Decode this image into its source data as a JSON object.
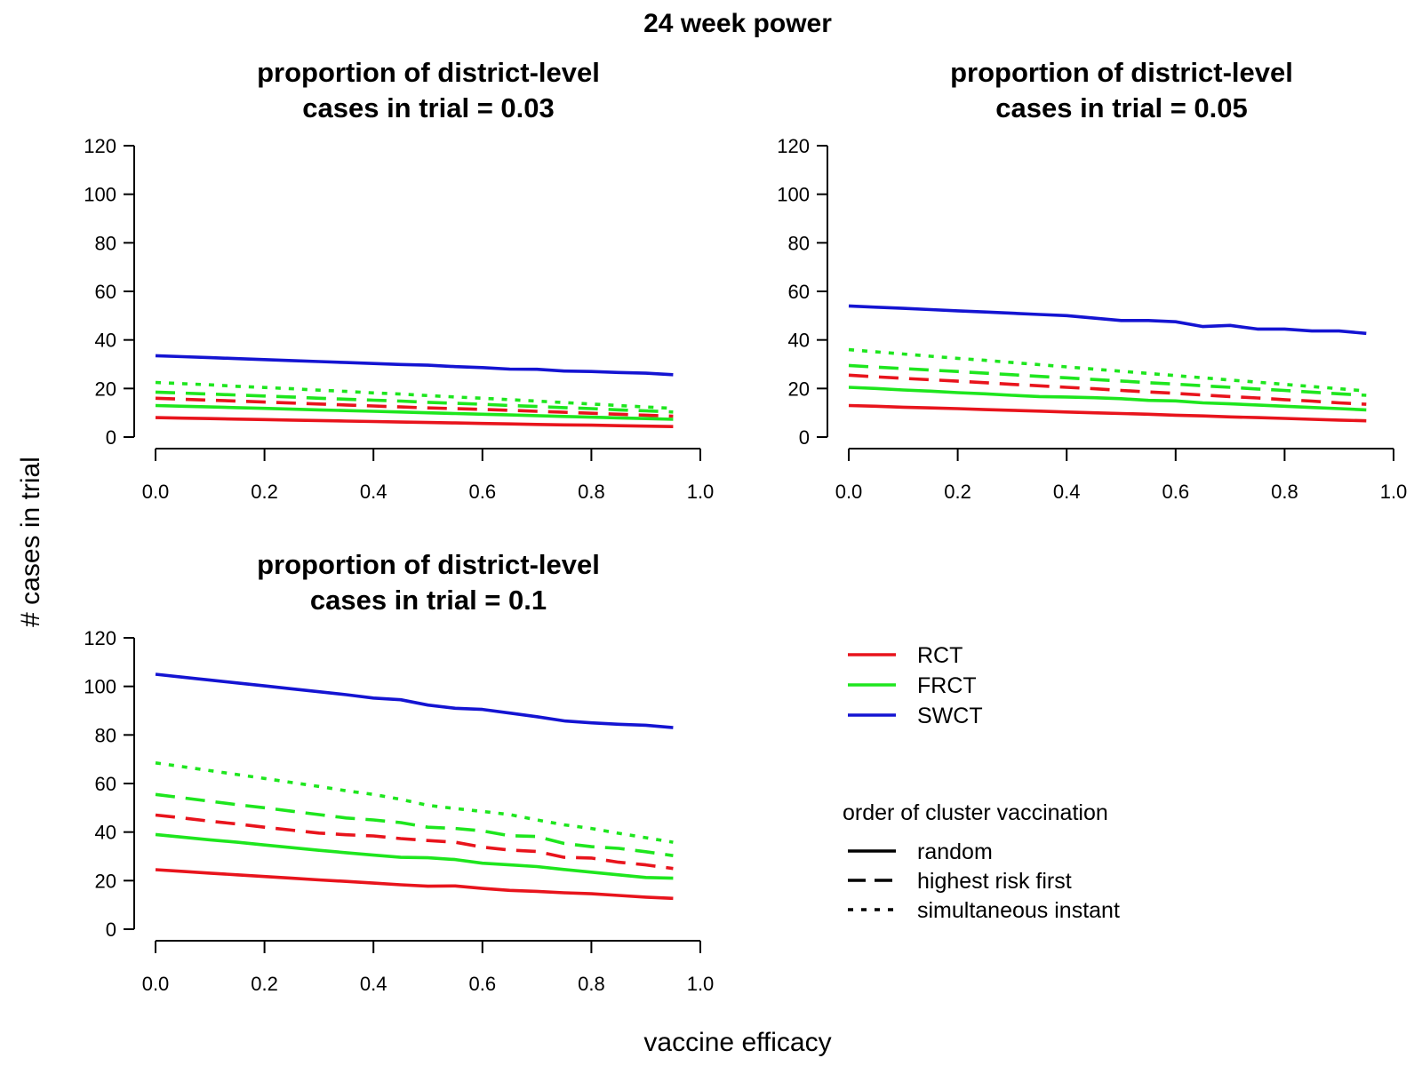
{
  "figure": {
    "title": "24 week power",
    "xlabel": "vaccine efficacy",
    "ylabel": "# cases in trial"
  },
  "legend": {
    "trial_types": [
      {
        "label": "RCT",
        "color": "#e8141c"
      },
      {
        "label": "FRCT",
        "color": "#1ee61e"
      },
      {
        "label": "SWCT",
        "color": "#1414d2"
      }
    ],
    "order_title": "order of cluster vaccination",
    "orders": [
      {
        "label": "random",
        "dash": "solid"
      },
      {
        "label": "highest risk first",
        "dash": "dashed"
      },
      {
        "label": "simultaneous instant",
        "dash": "dotted"
      }
    ]
  },
  "chart_data": [
    {
      "type": "line",
      "title": "proportion of district-level\ncases in trial = 0.03",
      "xlim": [
        0,
        1
      ],
      "ylim": [
        0,
        120
      ],
      "xticks": [
        "0.0",
        "0.2",
        "0.4",
        "0.6",
        "0.8",
        "1.0"
      ],
      "yticks": [
        "0",
        "20",
        "40",
        "60",
        "80",
        "100",
        "120"
      ],
      "x": [
        0,
        0.05,
        0.1,
        0.15,
        0.2,
        0.25,
        0.3,
        0.35,
        0.4,
        0.45,
        0.5,
        0.55,
        0.6,
        0.65,
        0.7,
        0.75,
        0.8,
        0.85,
        0.9,
        0.95
      ],
      "series": [
        {
          "trial": "RCT",
          "order": "random",
          "values": [
            8,
            7.8,
            7.6,
            7.4,
            7.2,
            7.0,
            6.8,
            6.6,
            6.4,
            6.2,
            6.0,
            5.8,
            5.6,
            5.4,
            5.2,
            5.0,
            4.9,
            4.7,
            4.5,
            4.3
          ]
        },
        {
          "trial": "RCT",
          "order": "highest risk first",
          "values": [
            16,
            15.6,
            15.2,
            14.8,
            14.4,
            14.0,
            13.6,
            13.2,
            12.8,
            12.4,
            12.0,
            11.7,
            11.4,
            11.0,
            10.6,
            10.2,
            9.8,
            9.4,
            9.0,
            8.6
          ]
        },
        {
          "trial": "FRCT",
          "order": "random",
          "values": [
            13,
            12.7,
            12.4,
            12.1,
            11.8,
            11.5,
            11.2,
            10.9,
            10.6,
            10.3,
            10.0,
            9.7,
            9.4,
            9.1,
            8.8,
            8.5,
            8.2,
            7.9,
            7.6,
            7.3
          ]
        },
        {
          "trial": "FRCT",
          "order": "highest risk first",
          "values": [
            18.5,
            18.1,
            17.7,
            17.3,
            16.9,
            16.5,
            16.0,
            15.6,
            15.2,
            14.8,
            14.3,
            13.9,
            13.5,
            13.0,
            12.6,
            12.1,
            11.7,
            11.2,
            10.8,
            10.3
          ]
        },
        {
          "trial": "FRCT",
          "order": "simultaneous instant",
          "values": [
            22.5,
            22.0,
            21.5,
            20.9,
            20.4,
            19.9,
            19.3,
            18.8,
            18.2,
            17.7,
            17.1,
            16.5,
            16.0,
            15.4,
            14.8,
            14.2,
            13.6,
            13.0,
            12.4,
            11.8
          ]
        },
        {
          "trial": "SWCT",
          "order": "random",
          "values": [
            33.5,
            33.1,
            32.7,
            32.3,
            31.9,
            31.5,
            31.1,
            30.7,
            30.3,
            29.9,
            29.6,
            29.0,
            28.6,
            28.0,
            27.9,
            27.2,
            27.0,
            26.6,
            26.3,
            25.7
          ]
        }
      ]
    },
    {
      "type": "line",
      "title": "proportion of district-level\ncases in trial = 0.05",
      "xlim": [
        0,
        1
      ],
      "ylim": [
        0,
        120
      ],
      "xticks": [
        "0.0",
        "0.2",
        "0.4",
        "0.6",
        "0.8",
        "1.0"
      ],
      "yticks": [
        "0",
        "20",
        "40",
        "60",
        "80",
        "100",
        "120"
      ],
      "x": [
        0,
        0.05,
        0.1,
        0.15,
        0.2,
        0.25,
        0.3,
        0.35,
        0.4,
        0.45,
        0.5,
        0.55,
        0.6,
        0.65,
        0.7,
        0.75,
        0.8,
        0.85,
        0.9,
        0.95
      ],
      "series": [
        {
          "trial": "RCT",
          "order": "random",
          "values": [
            13,
            12.7,
            12.3,
            12.0,
            11.7,
            11.3,
            11.0,
            10.7,
            10.3,
            10.0,
            9.7,
            9.4,
            9.0,
            8.7,
            8.3,
            8.0,
            7.7,
            7.3,
            7.0,
            6.7
          ]
        },
        {
          "trial": "RCT",
          "order": "highest risk first",
          "values": [
            25.5,
            24.8,
            24.2,
            23.6,
            23.0,
            22.4,
            21.7,
            21.1,
            20.5,
            19.9,
            19.2,
            18.6,
            18.0,
            17.3,
            16.7,
            16.1,
            15.4,
            14.8,
            14.1,
            13.5
          ]
        },
        {
          "trial": "FRCT",
          "order": "random",
          "values": [
            20.5,
            20.0,
            19.4,
            18.9,
            18.3,
            17.8,
            17.2,
            16.7,
            16.5,
            16.2,
            15.8,
            15.1,
            14.9,
            14.1,
            13.7,
            13.2,
            12.7,
            12.2,
            11.7,
            11.2
          ]
        },
        {
          "trial": "FRCT",
          "order": "highest risk first",
          "values": [
            29.5,
            28.8,
            28.2,
            27.6,
            27.0,
            26.3,
            25.7,
            25.0,
            24.4,
            23.7,
            23.1,
            22.4,
            21.8,
            21.1,
            20.5,
            19.8,
            19.2,
            18.5,
            17.8,
            17.2
          ]
        },
        {
          "trial": "FRCT",
          "order": "simultaneous instant",
          "values": [
            36,
            35.1,
            34.2,
            33.3,
            32.4,
            31.6,
            30.7,
            29.8,
            28.9,
            28.0,
            27.1,
            26.2,
            25.3,
            24.4,
            23.5,
            22.6,
            21.7,
            20.8,
            19.9,
            19.0
          ]
        },
        {
          "trial": "SWCT",
          "order": "random",
          "values": [
            54,
            53.5,
            53.0,
            52.5,
            52.0,
            51.5,
            51.0,
            50.5,
            50.0,
            49.0,
            48.0,
            48.0,
            47.5,
            45.5,
            46.0,
            44.5,
            44.5,
            43.7,
            43.7,
            42.7
          ]
        }
      ]
    },
    {
      "type": "line",
      "title": "proportion of district-level\ncases in trial = 0.1",
      "xlim": [
        0,
        1
      ],
      "ylim": [
        0,
        120
      ],
      "xticks": [
        "0.0",
        "0.2",
        "0.4",
        "0.6",
        "0.8",
        "1.0"
      ],
      "yticks": [
        "0",
        "20",
        "40",
        "60",
        "80",
        "100",
        "120"
      ],
      "x": [
        0,
        0.05,
        0.1,
        0.15,
        0.2,
        0.25,
        0.3,
        0.35,
        0.4,
        0.45,
        0.5,
        0.55,
        0.6,
        0.65,
        0.7,
        0.75,
        0.8,
        0.85,
        0.9,
        0.95
      ],
      "series": [
        {
          "trial": "RCT",
          "order": "random",
          "values": [
            24.5,
            23.8,
            23.1,
            22.4,
            21.7,
            21.0,
            20.3,
            19.7,
            19.0,
            18.3,
            17.7,
            17.8,
            16.8,
            16.0,
            15.6,
            15.0,
            14.6,
            13.9,
            13.2,
            12.7
          ]
        },
        {
          "trial": "RCT",
          "order": "highest risk first",
          "values": [
            47,
            45.8,
            44.5,
            43.3,
            42.0,
            40.8,
            39.6,
            38.9,
            38.4,
            37.3,
            36.5,
            35.8,
            33.8,
            32.6,
            32.0,
            29.6,
            29.3,
            27.6,
            26.5,
            25.0
          ]
        },
        {
          "trial": "FRCT",
          "order": "random",
          "values": [
            39,
            37.9,
            36.8,
            35.8,
            34.7,
            33.6,
            32.5,
            31.5,
            30.5,
            29.6,
            29.4,
            28.7,
            27.2,
            26.5,
            25.8,
            24.6,
            23.5,
            22.4,
            21.3,
            21.0
          ]
        },
        {
          "trial": "FRCT",
          "order": "highest risk first",
          "values": [
            55.5,
            54.1,
            52.7,
            51.3,
            50.0,
            48.6,
            47.2,
            45.8,
            45.0,
            43.9,
            42.0,
            41.5,
            40.5,
            38.5,
            38.2,
            35.3,
            34.0,
            33.3,
            31.9,
            30.3
          ]
        },
        {
          "trial": "FRCT",
          "order": "simultaneous instant",
          "values": [
            68.5,
            66.9,
            65.3,
            63.7,
            62.1,
            60.4,
            58.8,
            57.0,
            55.5,
            53.5,
            51.0,
            49.7,
            48.5,
            47.2,
            45.0,
            43.0,
            41.5,
            39.5,
            37.7,
            35.8
          ]
        },
        {
          "trial": "SWCT",
          "order": "random",
          "values": [
            105,
            103.8,
            102.6,
            101.4,
            100.2,
            99.0,
            97.8,
            96.6,
            95.2,
            94.5,
            92.3,
            91.0,
            90.5,
            89.0,
            87.5,
            85.8,
            85.0,
            84.4,
            84.0,
            83.0
          ]
        }
      ]
    }
  ]
}
